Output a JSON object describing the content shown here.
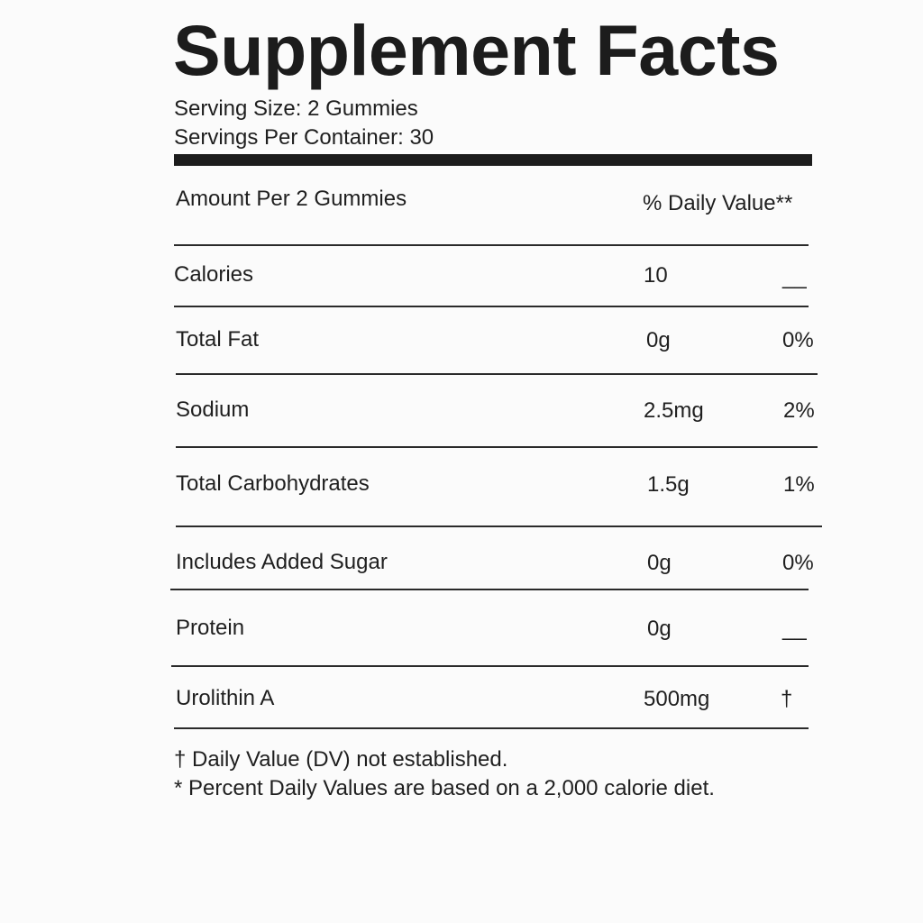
{
  "title": "Supplement Facts",
  "serving_size": "Serving Size: 2 Gummies",
  "servings_per_container": "Servings Per Container: 30",
  "header": {
    "amount_label": "Amount Per 2 Gummies",
    "dv_label": "% Daily Value**"
  },
  "rows": [
    {
      "name": "Calories",
      "amount": "10",
      "dv": "__"
    },
    {
      "name": "Total Fat",
      "amount": "0g",
      "dv": "0%"
    },
    {
      "name": "Sodium",
      "amount": "2.5mg",
      "dv": "2%"
    },
    {
      "name": "Total Carbohydrates",
      "amount": "1.5g",
      "dv": "1%"
    },
    {
      "name": "Includes Added Sugar",
      "amount": "0g",
      "dv": "0%"
    },
    {
      "name": "Protein",
      "amount": "0g",
      "dv": "__"
    },
    {
      "name": "Urolithin A",
      "amount": "500mg",
      "dv": "†"
    }
  ],
  "footnotes": [
    "† Daily Value (DV) not established.",
    "* Percent Daily Values are based on a 2,000 calorie diet."
  ]
}
